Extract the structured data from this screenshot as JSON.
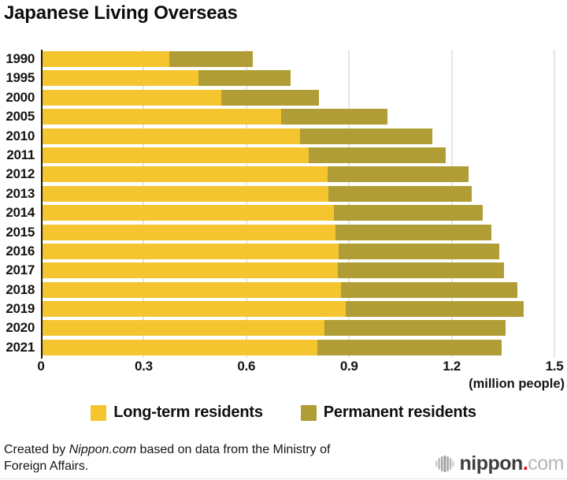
{
  "title": "Japanese Living Overseas",
  "chart_data": {
    "type": "bar",
    "orientation": "horizontal",
    "stacked": true,
    "title": "Japanese Living Overseas",
    "categories": [
      "1990",
      "1995",
      "2000",
      "2005",
      "2010",
      "2011",
      "2012",
      "2013",
      "2014",
      "2015",
      "2016",
      "2017",
      "2018",
      "2019",
      "2020",
      "2021"
    ],
    "series": [
      {
        "name": "Long-term residents",
        "color": "#F4C52F",
        "values": [
          0.374,
          0.461,
          0.527,
          0.702,
          0.758,
          0.783,
          0.838,
          0.84,
          0.856,
          0.86,
          0.87,
          0.868,
          0.877,
          0.891,
          0.828,
          0.807
        ]
      },
      {
        "name": "Permanent residents",
        "color": "#B09D35",
        "values": [
          0.246,
          0.268,
          0.285,
          0.311,
          0.385,
          0.4,
          0.412,
          0.419,
          0.434,
          0.457,
          0.468,
          0.484,
          0.514,
          0.519,
          0.53,
          0.538
        ]
      }
    ],
    "xlabel": "(million people)",
    "xlim": [
      0,
      1.5
    ],
    "xticks": [
      0,
      0.3,
      0.6,
      0.9,
      1.2,
      1.5
    ],
    "xtick_labels": [
      "0",
      "0.3",
      "0.6",
      "0.9",
      "1.2",
      "1.5"
    ],
    "grid": true,
    "gridline_color": "#cbcbcb",
    "axis_color": "#1a1a1a",
    "legend_position": "bottom"
  },
  "footer": {
    "credit_prefix": "Created by ",
    "credit_brand": "Nippon.com",
    "credit_suffix": " based on data from the Ministry of",
    "credit_line2": "Foreign Affairs."
  },
  "logo": {
    "brand": "nippon",
    "dot": ".",
    "tld": "com",
    "dot_color": "#e60012"
  }
}
